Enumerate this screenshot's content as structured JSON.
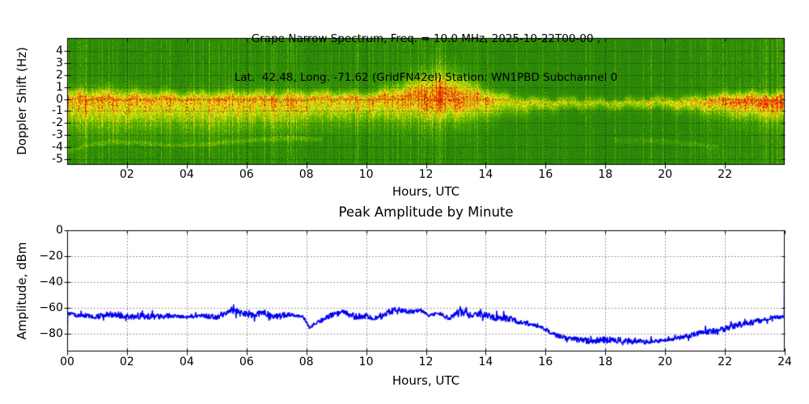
{
  "figure_background": "#ffffff",
  "chart_data": [
    {
      "type": "heatmap",
      "role": "doppler-spectrogram",
      "title_line1": "Grape Narrow Spectrum, Freq. = 10.0 MHz, 2025-10-22T00-00 ,",
      "title_line2": "Lat.  42.48, Long. -71.62 (GridFN42el) Station: WN1PBD Subchannel 0",
      "xlabel": "Hours, UTC",
      "ylabel": "Doppler Shift (Hz)",
      "xlim": [
        0,
        24
      ],
      "ylim": [
        -5.5,
        5.1
      ],
      "grid": "dotted black, x every 2 h, y every 1 Hz",
      "xticks": [
        {
          "value": 2,
          "label": "02"
        },
        {
          "value": 4,
          "label": "04"
        },
        {
          "value": 6,
          "label": "06"
        },
        {
          "value": 8,
          "label": "08"
        },
        {
          "value": 10,
          "label": "10"
        },
        {
          "value": 12,
          "label": "12"
        },
        {
          "value": 14,
          "label": "14"
        },
        {
          "value": 16,
          "label": "16"
        },
        {
          "value": 18,
          "label": "18"
        },
        {
          "value": 20,
          "label": "20"
        },
        {
          "value": 22,
          "label": "22"
        }
      ],
      "yticks": [
        {
          "value": 4,
          "label": "4"
        },
        {
          "value": 3,
          "label": "3"
        },
        {
          "value": 2,
          "label": "2"
        },
        {
          "value": 1,
          "label": "1"
        },
        {
          "value": 0,
          "label": "0"
        },
        {
          "value": -1,
          "label": "-1"
        },
        {
          "value": -2,
          "label": "-2"
        },
        {
          "value": -3,
          "label": "-3"
        },
        {
          "value": -4,
          "label": "-4"
        },
        {
          "value": -5,
          "label": "-5"
        }
      ],
      "colormap_stops": [
        [
          0.0,
          "#14660a"
        ],
        [
          0.35,
          "#2f8c08"
        ],
        [
          0.55,
          "#58b000"
        ],
        [
          0.7,
          "#b8d800"
        ],
        [
          0.82,
          "#f6ee22"
        ],
        [
          0.92,
          "#ff9911"
        ],
        [
          1.0,
          "#dd2200"
        ]
      ],
      "background_level": 0.22,
      "background_noise": 0.15,
      "band_keyframes_h_center_amp_sigup_sigdn": [
        [
          0.0,
          -0.05,
          0.5,
          0.55,
          1.6
        ],
        [
          1.5,
          0.05,
          0.52,
          0.65,
          1.8
        ],
        [
          3.0,
          -0.05,
          0.5,
          0.5,
          1.6
        ],
        [
          4.5,
          0.0,
          0.48,
          0.5,
          1.8
        ],
        [
          6.0,
          -0.05,
          0.5,
          0.5,
          1.6
        ],
        [
          8.0,
          0.0,
          0.5,
          0.5,
          1.5
        ],
        [
          10.0,
          0.0,
          0.48,
          0.45,
          1.3
        ],
        [
          11.3,
          0.05,
          0.55,
          0.9,
          1.4
        ],
        [
          12.2,
          0.15,
          0.62,
          1.5,
          1.5
        ],
        [
          13.0,
          0.15,
          0.62,
          1.4,
          1.4
        ],
        [
          13.8,
          0.0,
          0.52,
          0.7,
          1.2
        ],
        [
          14.8,
          -0.2,
          0.42,
          0.4,
          0.8
        ],
        [
          16.0,
          -0.3,
          0.38,
          0.3,
          0.5
        ],
        [
          18.0,
          -0.3,
          0.36,
          0.25,
          0.4
        ],
        [
          20.0,
          -0.28,
          0.4,
          0.3,
          0.45
        ],
        [
          21.5,
          -0.2,
          0.5,
          0.4,
          0.7
        ],
        [
          22.5,
          -0.18,
          0.6,
          0.5,
          1.0
        ],
        [
          24.0,
          -0.12,
          0.62,
          0.5,
          1.1
        ]
      ],
      "red_line_probability_keyframes": [
        [
          0,
          0.5
        ],
        [
          11,
          0.5
        ],
        [
          13,
          0.55
        ],
        [
          14,
          0.3
        ],
        [
          15.5,
          0.12
        ],
        [
          16,
          0.05
        ],
        [
          20,
          0.05
        ],
        [
          21,
          0.15
        ],
        [
          22,
          0.45
        ],
        [
          24,
          0.5
        ]
      ],
      "vertical_streak_density_keyframes": [
        [
          0,
          0.5
        ],
        [
          1,
          0.45
        ],
        [
          2,
          0.35
        ],
        [
          4,
          0.35
        ],
        [
          6,
          0.4
        ],
        [
          8,
          0.35
        ],
        [
          10,
          0.3
        ],
        [
          11.5,
          0.45
        ],
        [
          12.5,
          0.45
        ],
        [
          13,
          0.3
        ],
        [
          14,
          0.25
        ],
        [
          16,
          0.12
        ],
        [
          18,
          0.1
        ],
        [
          20,
          0.15
        ],
        [
          21,
          0.3
        ],
        [
          22,
          0.55
        ],
        [
          24,
          0.6
        ]
      ],
      "faint_arcs": [
        {
          "points": [
            [
              0,
              -4.4
            ],
            [
              0.7,
              -3.9
            ],
            [
              1.5,
              -3.6
            ],
            [
              2.5,
              -3.7
            ],
            [
              3.5,
              -3.9
            ],
            [
              4.5,
              -3.85
            ],
            [
              5.5,
              -3.6
            ],
            [
              6.5,
              -3.4
            ],
            [
              7.5,
              -3.3
            ],
            [
              8.5,
              -3.4
            ]
          ],
          "intensity": 0.14,
          "width_hz": 0.16
        },
        {
          "points": [
            [
              18.3,
              -3.5
            ],
            [
              19.0,
              -3.45
            ],
            [
              20.0,
              -3.55
            ],
            [
              21.0,
              -3.8
            ],
            [
              21.8,
              -4.1
            ]
          ],
          "intensity": 0.1,
          "width_hz": 0.18
        }
      ]
    },
    {
      "type": "line",
      "role": "peak-amplitude-trace",
      "title": "Peak Amplitude by Minute",
      "xlabel": "Hours, UTC",
      "ylabel": "Amplitude, dBm",
      "xlim": [
        0,
        24
      ],
      "ylim": [
        -93.75,
        0
      ],
      "grid": "dotted black, x every 2 h, y every 20 dBm",
      "line_color": "#0000ee",
      "line_width": 1.6,
      "points_per_hour": 60,
      "noise_dbm": 1.6,
      "start_spike_dbm": -93.5,
      "end_spike_dbm": -0.5,
      "xticks": [
        {
          "value": 0,
          "label": "00"
        },
        {
          "value": 2,
          "label": "02"
        },
        {
          "value": 4,
          "label": "04"
        },
        {
          "value": 6,
          "label": "06"
        },
        {
          "value": 8,
          "label": "08"
        },
        {
          "value": 10,
          "label": "10"
        },
        {
          "value": 12,
          "label": "12"
        },
        {
          "value": 14,
          "label": "14"
        },
        {
          "value": 16,
          "label": "16"
        },
        {
          "value": 18,
          "label": "18"
        },
        {
          "value": 20,
          "label": "20"
        },
        {
          "value": 22,
          "label": "22"
        },
        {
          "value": 24,
          "label": "24"
        }
      ],
      "yticks": [
        {
          "value": 0,
          "label": "0"
        },
        {
          "value": -20,
          "label": "−20"
        },
        {
          "value": -40,
          "label": "−40"
        },
        {
          "value": -60,
          "label": "−60"
        },
        {
          "value": -80,
          "label": "−80"
        }
      ],
      "baseline_keyframes_h_dbm": [
        [
          0.02,
          -64
        ],
        [
          0.3,
          -66
        ],
        [
          1.0,
          -66.5
        ],
        [
          1.6,
          -64.5
        ],
        [
          2.0,
          -67
        ],
        [
          2.5,
          -66
        ],
        [
          3.0,
          -67
        ],
        [
          3.5,
          -66
        ],
        [
          4.0,
          -67.5
        ],
        [
          4.4,
          -66
        ],
        [
          5.0,
          -67
        ],
        [
          5.5,
          -61.5
        ],
        [
          5.8,
          -64
        ],
        [
          6.2,
          -66
        ],
        [
          6.6,
          -64
        ],
        [
          7.0,
          -66.5
        ],
        [
          7.5,
          -65
        ],
        [
          7.9,
          -67
        ],
        [
          8.1,
          -75
        ],
        [
          8.4,
          -71
        ],
        [
          8.8,
          -66
        ],
        [
          9.2,
          -63.5
        ],
        [
          9.6,
          -66.5
        ],
        [
          10.0,
          -66
        ],
        [
          10.4,
          -67.5
        ],
        [
          10.8,
          -63
        ],
        [
          11.1,
          -61
        ],
        [
          11.4,
          -63.5
        ],
        [
          11.8,
          -61.5
        ],
        [
          12.1,
          -66
        ],
        [
          12.4,
          -64
        ],
        [
          12.8,
          -68.5
        ],
        [
          13.1,
          -62.5
        ],
        [
          13.5,
          -66
        ],
        [
          13.8,
          -64.5
        ],
        [
          14.2,
          -67
        ],
        [
          14.8,
          -68.5
        ],
        [
          15.2,
          -71
        ],
        [
          15.8,
          -74
        ],
        [
          16.2,
          -80
        ],
        [
          16.8,
          -84
        ],
        [
          17.4,
          -85.5
        ],
        [
          18.0,
          -85
        ],
        [
          18.3,
          -84.5
        ],
        [
          18.7,
          -86
        ],
        [
          19.0,
          -85.5
        ],
        [
          19.4,
          -86.5
        ],
        [
          19.8,
          -85.5
        ],
        [
          20.2,
          -84.5
        ],
        [
          20.6,
          -82.5
        ],
        [
          21.0,
          -80.5
        ],
        [
          21.6,
          -78
        ],
        [
          22.2,
          -74.5
        ],
        [
          22.8,
          -71.5
        ],
        [
          23.2,
          -70
        ],
        [
          23.6,
          -67.5
        ],
        [
          23.95,
          -66.5
        ]
      ]
    }
  ]
}
